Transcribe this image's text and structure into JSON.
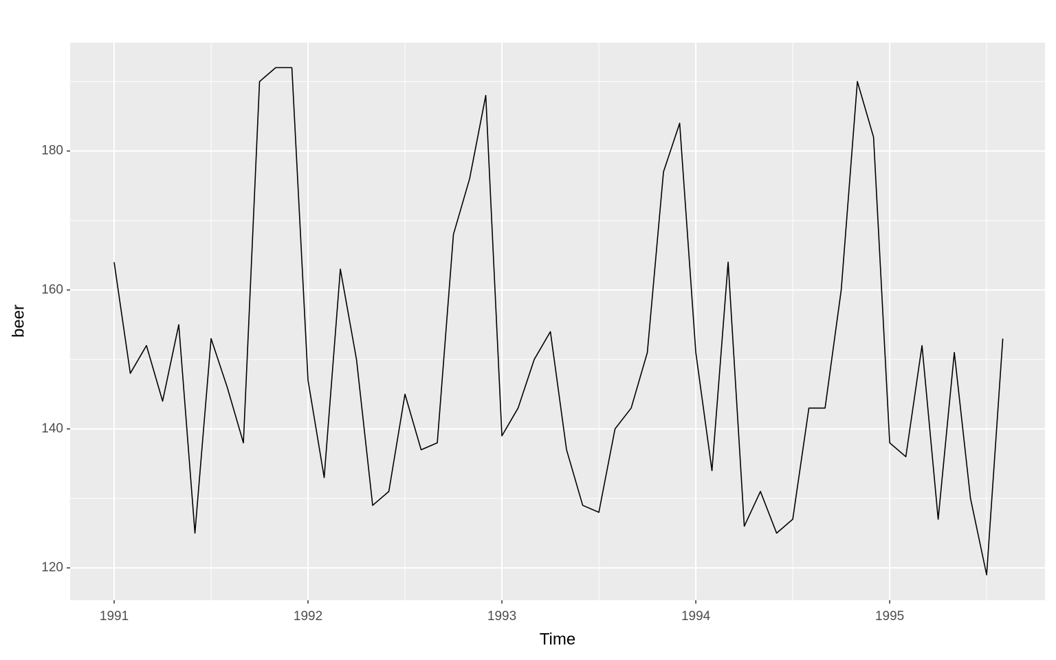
{
  "chart_data": {
    "type": "line",
    "x_label": "Time",
    "y_label": "beer",
    "x": [
      1991,
      1991.0833,
      1991.1667,
      1991.25,
      1991.3333,
      1991.4167,
      1991.5,
      1991.5833,
      1991.6667,
      1991.75,
      1991.8333,
      1991.9167,
      1992,
      1992.0833,
      1992.1667,
      1992.25,
      1992.3333,
      1992.4167,
      1992.5,
      1992.5833,
      1992.6667,
      1992.75,
      1992.8333,
      1992.9167,
      1993,
      1993.0833,
      1993.1667,
      1993.25,
      1993.3333,
      1993.4167,
      1993.5,
      1993.5833,
      1993.6667,
      1993.75,
      1993.8333,
      1993.9167,
      1994,
      1994.0833,
      1994.1667,
      1994.25,
      1994.3333,
      1994.4167,
      1994.5,
      1994.5833,
      1994.6667,
      1994.75,
      1994.8333,
      1994.9167,
      1995,
      1995.0833,
      1995.1667,
      1995.25,
      1995.3333,
      1995.4167,
      1995.5,
      1995.5833
    ],
    "series": [
      {
        "name": "beer",
        "color": "#000000",
        "values": [
          164,
          148,
          152,
          144,
          155,
          125,
          153,
          146,
          138,
          190,
          192,
          192,
          147,
          133,
          163,
          150,
          129,
          131,
          145,
          137,
          138,
          168,
          176,
          188,
          139,
          143,
          150,
          154,
          137,
          129,
          128,
          140,
          143,
          151,
          177,
          184,
          151,
          134,
          164,
          126,
          131,
          125,
          127,
          143,
          143,
          160,
          190,
          182,
          138,
          136,
          152,
          127,
          151,
          130,
          119,
          153
        ]
      }
    ],
    "xlim": [
      1990.773,
      1995.801
    ],
    "xticks": [
      1991,
      1992,
      1993,
      1994,
      1995
    ],
    "ylim": [
      115.35,
      195.6
    ],
    "yticks": [
      120,
      140,
      160,
      180
    ],
    "grid": true,
    "panel_color": "#ebebeb"
  }
}
